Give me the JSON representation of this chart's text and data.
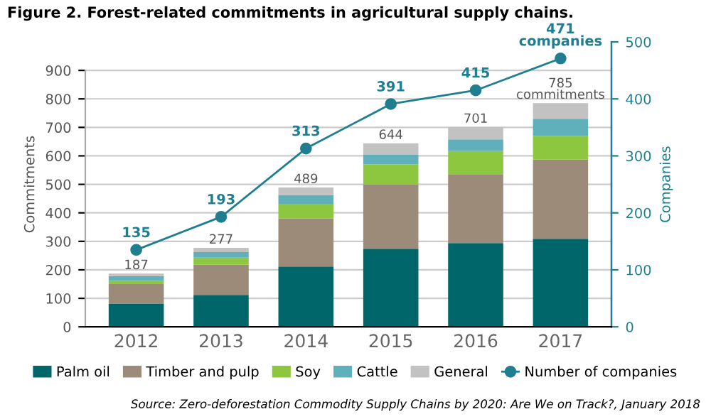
{
  "chart_data": {
    "type": "bar",
    "stacked": true,
    "title": "Figure 2. Forest-related commitments in agricultural supply chains.",
    "categories": [
      "2012",
      "2013",
      "2014",
      "2015",
      "2016",
      "2017"
    ],
    "series": [
      {
        "name": "Palm oil",
        "color": "#00666a",
        "values": [
          80,
          112,
          212,
          274,
          294,
          309
        ]
      },
      {
        "name": "Timber and pulp",
        "color": "#9c8b79",
        "values": [
          70,
          106,
          168,
          226,
          242,
          278
        ]
      },
      {
        "name": "Soy",
        "color": "#8dc63f",
        "values": [
          12,
          25,
          52,
          70,
          81,
          83
        ]
      },
      {
        "name": "Cattle",
        "color": "#5fb0bb",
        "values": [
          16,
          19,
          30,
          34,
          41,
          60
        ]
      },
      {
        "name": "General",
        "color": "#c2c2c2",
        "values": [
          9,
          15,
          27,
          40,
          43,
          55
        ]
      },
      {
        "name": "Number of companies",
        "type": "line",
        "axis": "y2",
        "color": "#1f7f90",
        "marker": "circle",
        "values": [
          135,
          193,
          313,
          391,
          415,
          471
        ],
        "value_labels": [
          "135",
          "193",
          "313",
          "391",
          "415",
          "471\ncompanies"
        ]
      }
    ],
    "totals": [
      "187",
      "277",
      "489",
      "644",
      "701",
      "785\ncommitments"
    ],
    "ylabel": "Commitments",
    "y2label": "Companies",
    "ylim": [
      0,
      1000
    ],
    "yticks": [
      0,
      100,
      200,
      300,
      400,
      500,
      600,
      700,
      800,
      900
    ],
    "y2lim": [
      0,
      500
    ],
    "y2ticks": [
      0,
      100,
      200,
      300,
      400,
      500
    ],
    "grid": "y",
    "legend": "bottom",
    "annotations": [
      "Source: Zero-deforestation Commodity Supply Chains by 2020: Are We on Track?, January 2018"
    ]
  }
}
